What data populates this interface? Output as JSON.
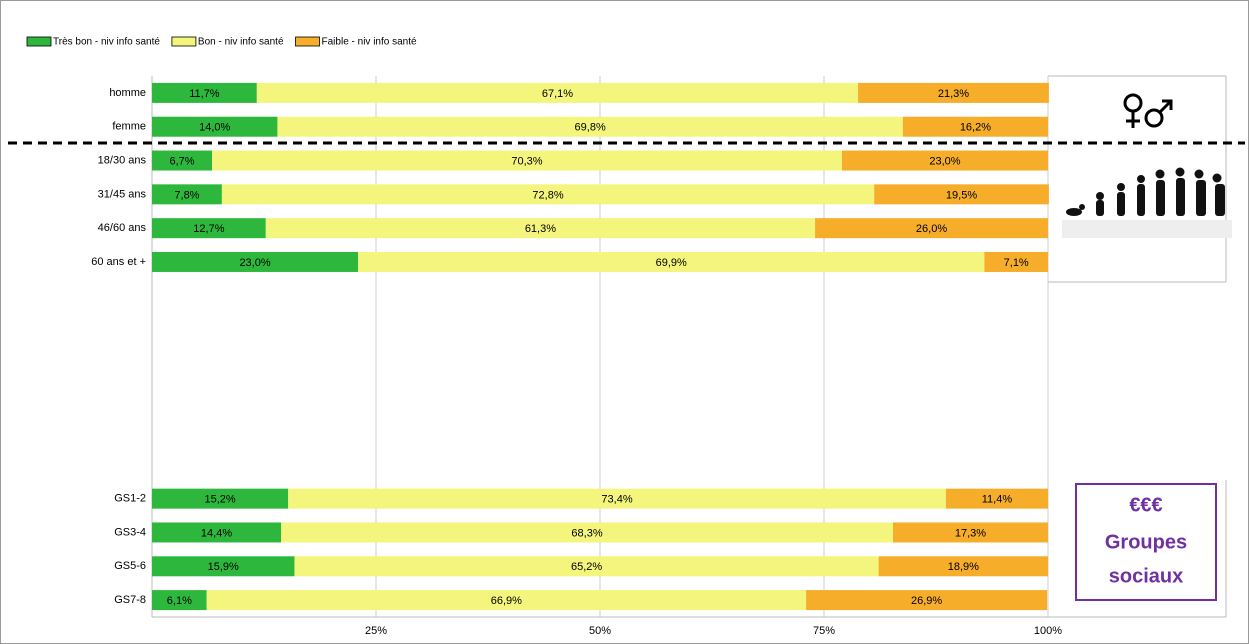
{
  "chart_data": {
    "type": "stacked-bar-horizontal",
    "categories": [
      "homme",
      "femme",
      "18/30 ans",
      "31/45 ans",
      "46/60 ans",
      "60 ans et +",
      null,
      null,
      null,
      null,
      null,
      null,
      "GS1-2",
      "GS3-4",
      "GS5-6",
      "GS7-8"
    ],
    "series": [
      {
        "name": "Très bon - niv info santé",
        "color": "#2db83d",
        "values": [
          11.7,
          14.0,
          6.7,
          7.8,
          12.7,
          23.0,
          null,
          null,
          null,
          null,
          null,
          null,
          15.2,
          14.4,
          15.9,
          6.1
        ],
        "value_labels": [
          "11,7%",
          "14,0%",
          "6,7%",
          "7,8%",
          "12,7%",
          "23,0%",
          null,
          null,
          null,
          null,
          null,
          null,
          "15,2%",
          "14,4%",
          "15,9%",
          "6,1%"
        ]
      },
      {
        "name": "Bon - niv info santé",
        "color": "#f3f57c",
        "values": [
          67.1,
          69.8,
          70.3,
          72.8,
          61.3,
          69.9,
          null,
          null,
          null,
          null,
          null,
          null,
          73.4,
          68.3,
          65.2,
          66.9
        ],
        "value_labels": [
          "67,1%",
          "69,8%",
          "70,3%",
          "72,8%",
          "61,3%",
          "69,9%",
          null,
          null,
          null,
          null,
          null,
          null,
          "73,4%",
          "68,3%",
          "65,2%",
          "66,9%"
        ]
      },
      {
        "name": "Faible - niv info santé",
        "color": "#f6ad2a",
        "values": [
          21.3,
          16.2,
          23.0,
          19.5,
          26.0,
          7.1,
          null,
          null,
          null,
          null,
          null,
          null,
          11.4,
          17.3,
          18.9,
          26.9
        ],
        "value_labels": [
          "21,3%",
          "16,2%",
          "23,0%",
          "19,5%",
          "26,0%",
          "7,1%",
          null,
          null,
          null,
          null,
          null,
          null,
          "11,4%",
          "17,3%",
          "18,9%",
          "26,9%"
        ]
      }
    ],
    "xlim": [
      0,
      100
    ],
    "xticks": [
      {
        "value": 25,
        "label": "25%"
      },
      {
        "value": 50,
        "label": "50%"
      },
      {
        "value": 75,
        "label": "75%"
      },
      {
        "value": 100,
        "label": "100%"
      }
    ],
    "grid": true,
    "legend": "top-left",
    "annotations": [
      "€€€",
      "Groupes",
      "sociaux"
    ]
  }
}
